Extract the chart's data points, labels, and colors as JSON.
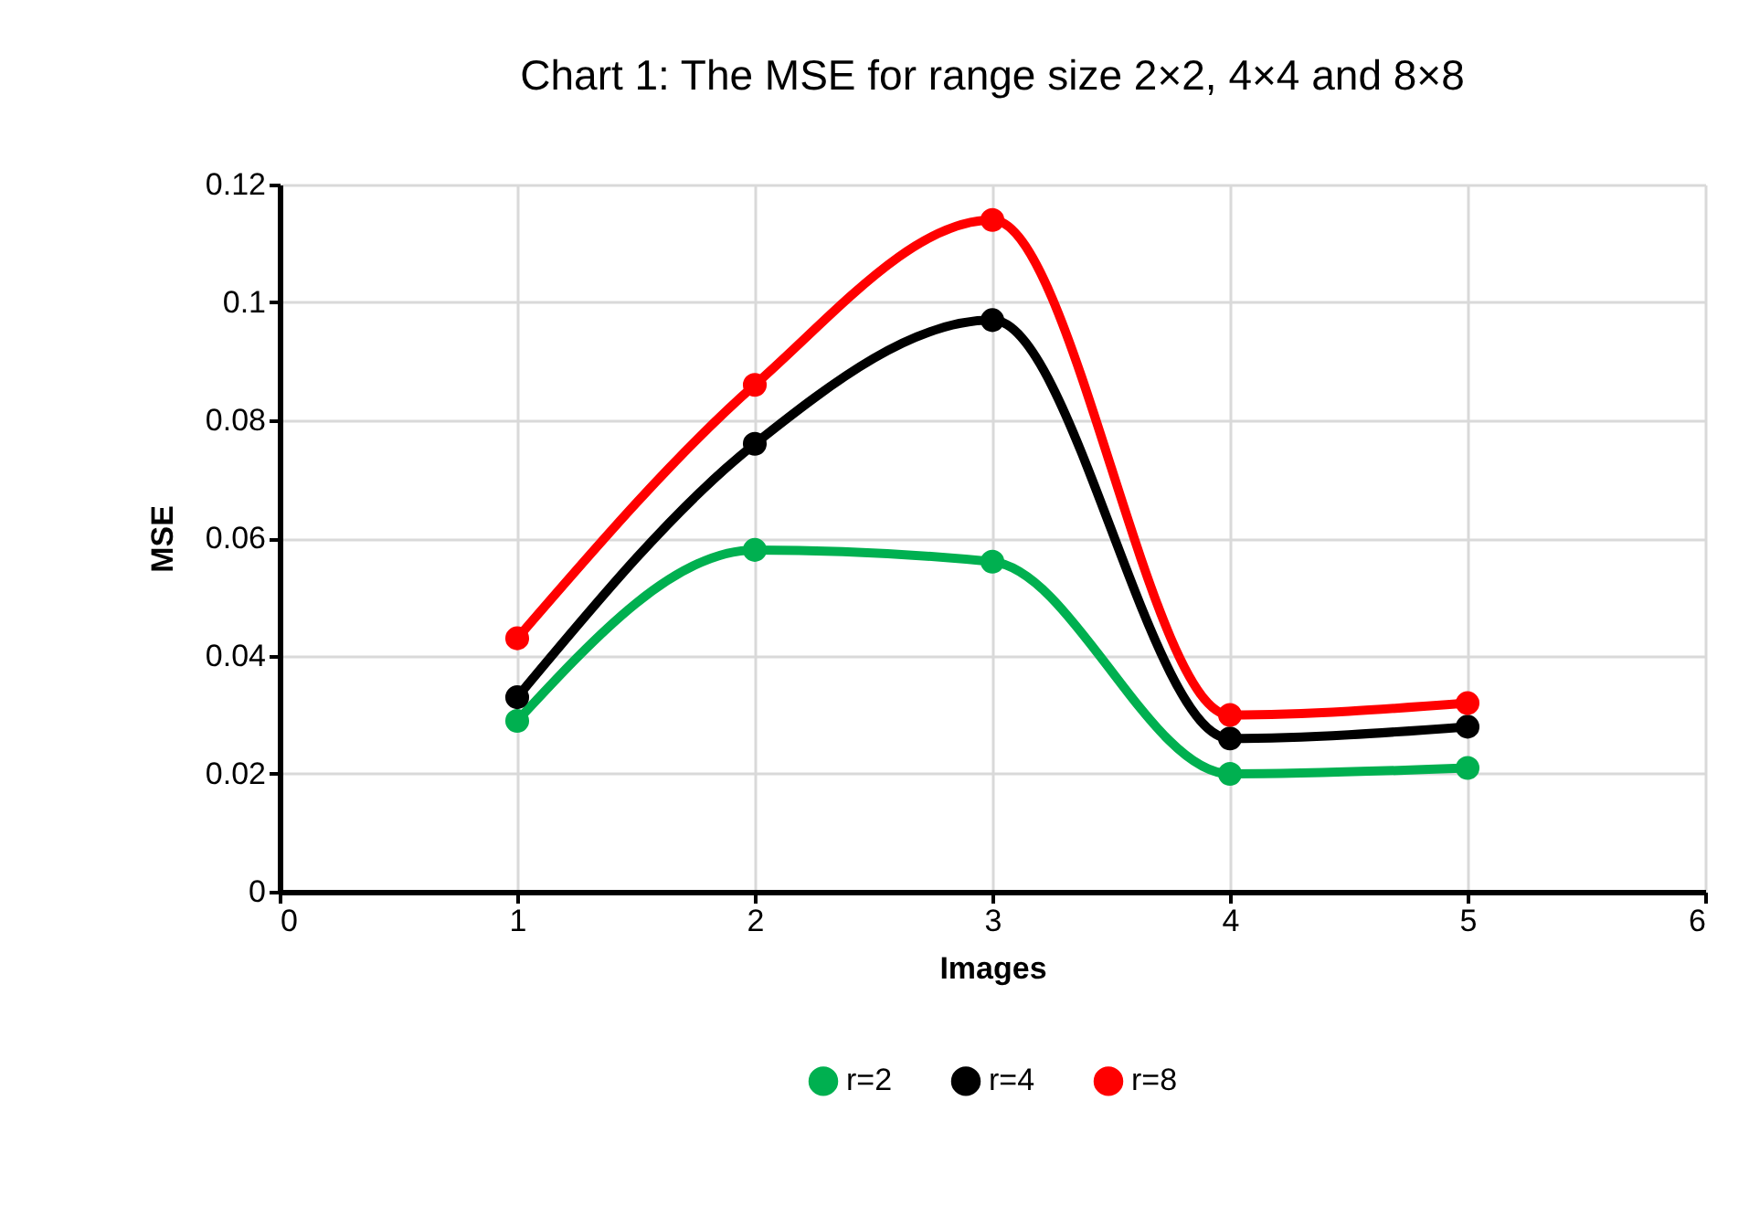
{
  "chart_data": {
    "type": "line",
    "title": "Chart 1: The MSE for range size 2×2, 4×4 and 8×8",
    "xlabel": "Images",
    "ylabel": "MSE",
    "x": [
      1,
      2,
      3,
      4,
      5
    ],
    "series": [
      {
        "name": "r=2",
        "color": "#00b050",
        "values": [
          0.029,
          0.058,
          0.056,
          0.02,
          0.021
        ]
      },
      {
        "name": "r=4",
        "color": "#000000",
        "values": [
          0.033,
          0.076,
          0.097,
          0.026,
          0.028
        ]
      },
      {
        "name": "r=8",
        "color": "#ff0000",
        "values": [
          0.043,
          0.086,
          0.114,
          0.03,
          0.032
        ]
      }
    ],
    "xlim": [
      0,
      6
    ],
    "xticks": [
      0,
      1,
      2,
      3,
      4,
      5,
      6
    ],
    "ylim": [
      0,
      0.12
    ],
    "yticks": [
      0,
      0.02,
      0.04,
      0.06,
      0.08,
      0.1,
      0.12
    ],
    "grid": true,
    "legend": "bottom",
    "marker": "circle",
    "line_style": "solid"
  }
}
